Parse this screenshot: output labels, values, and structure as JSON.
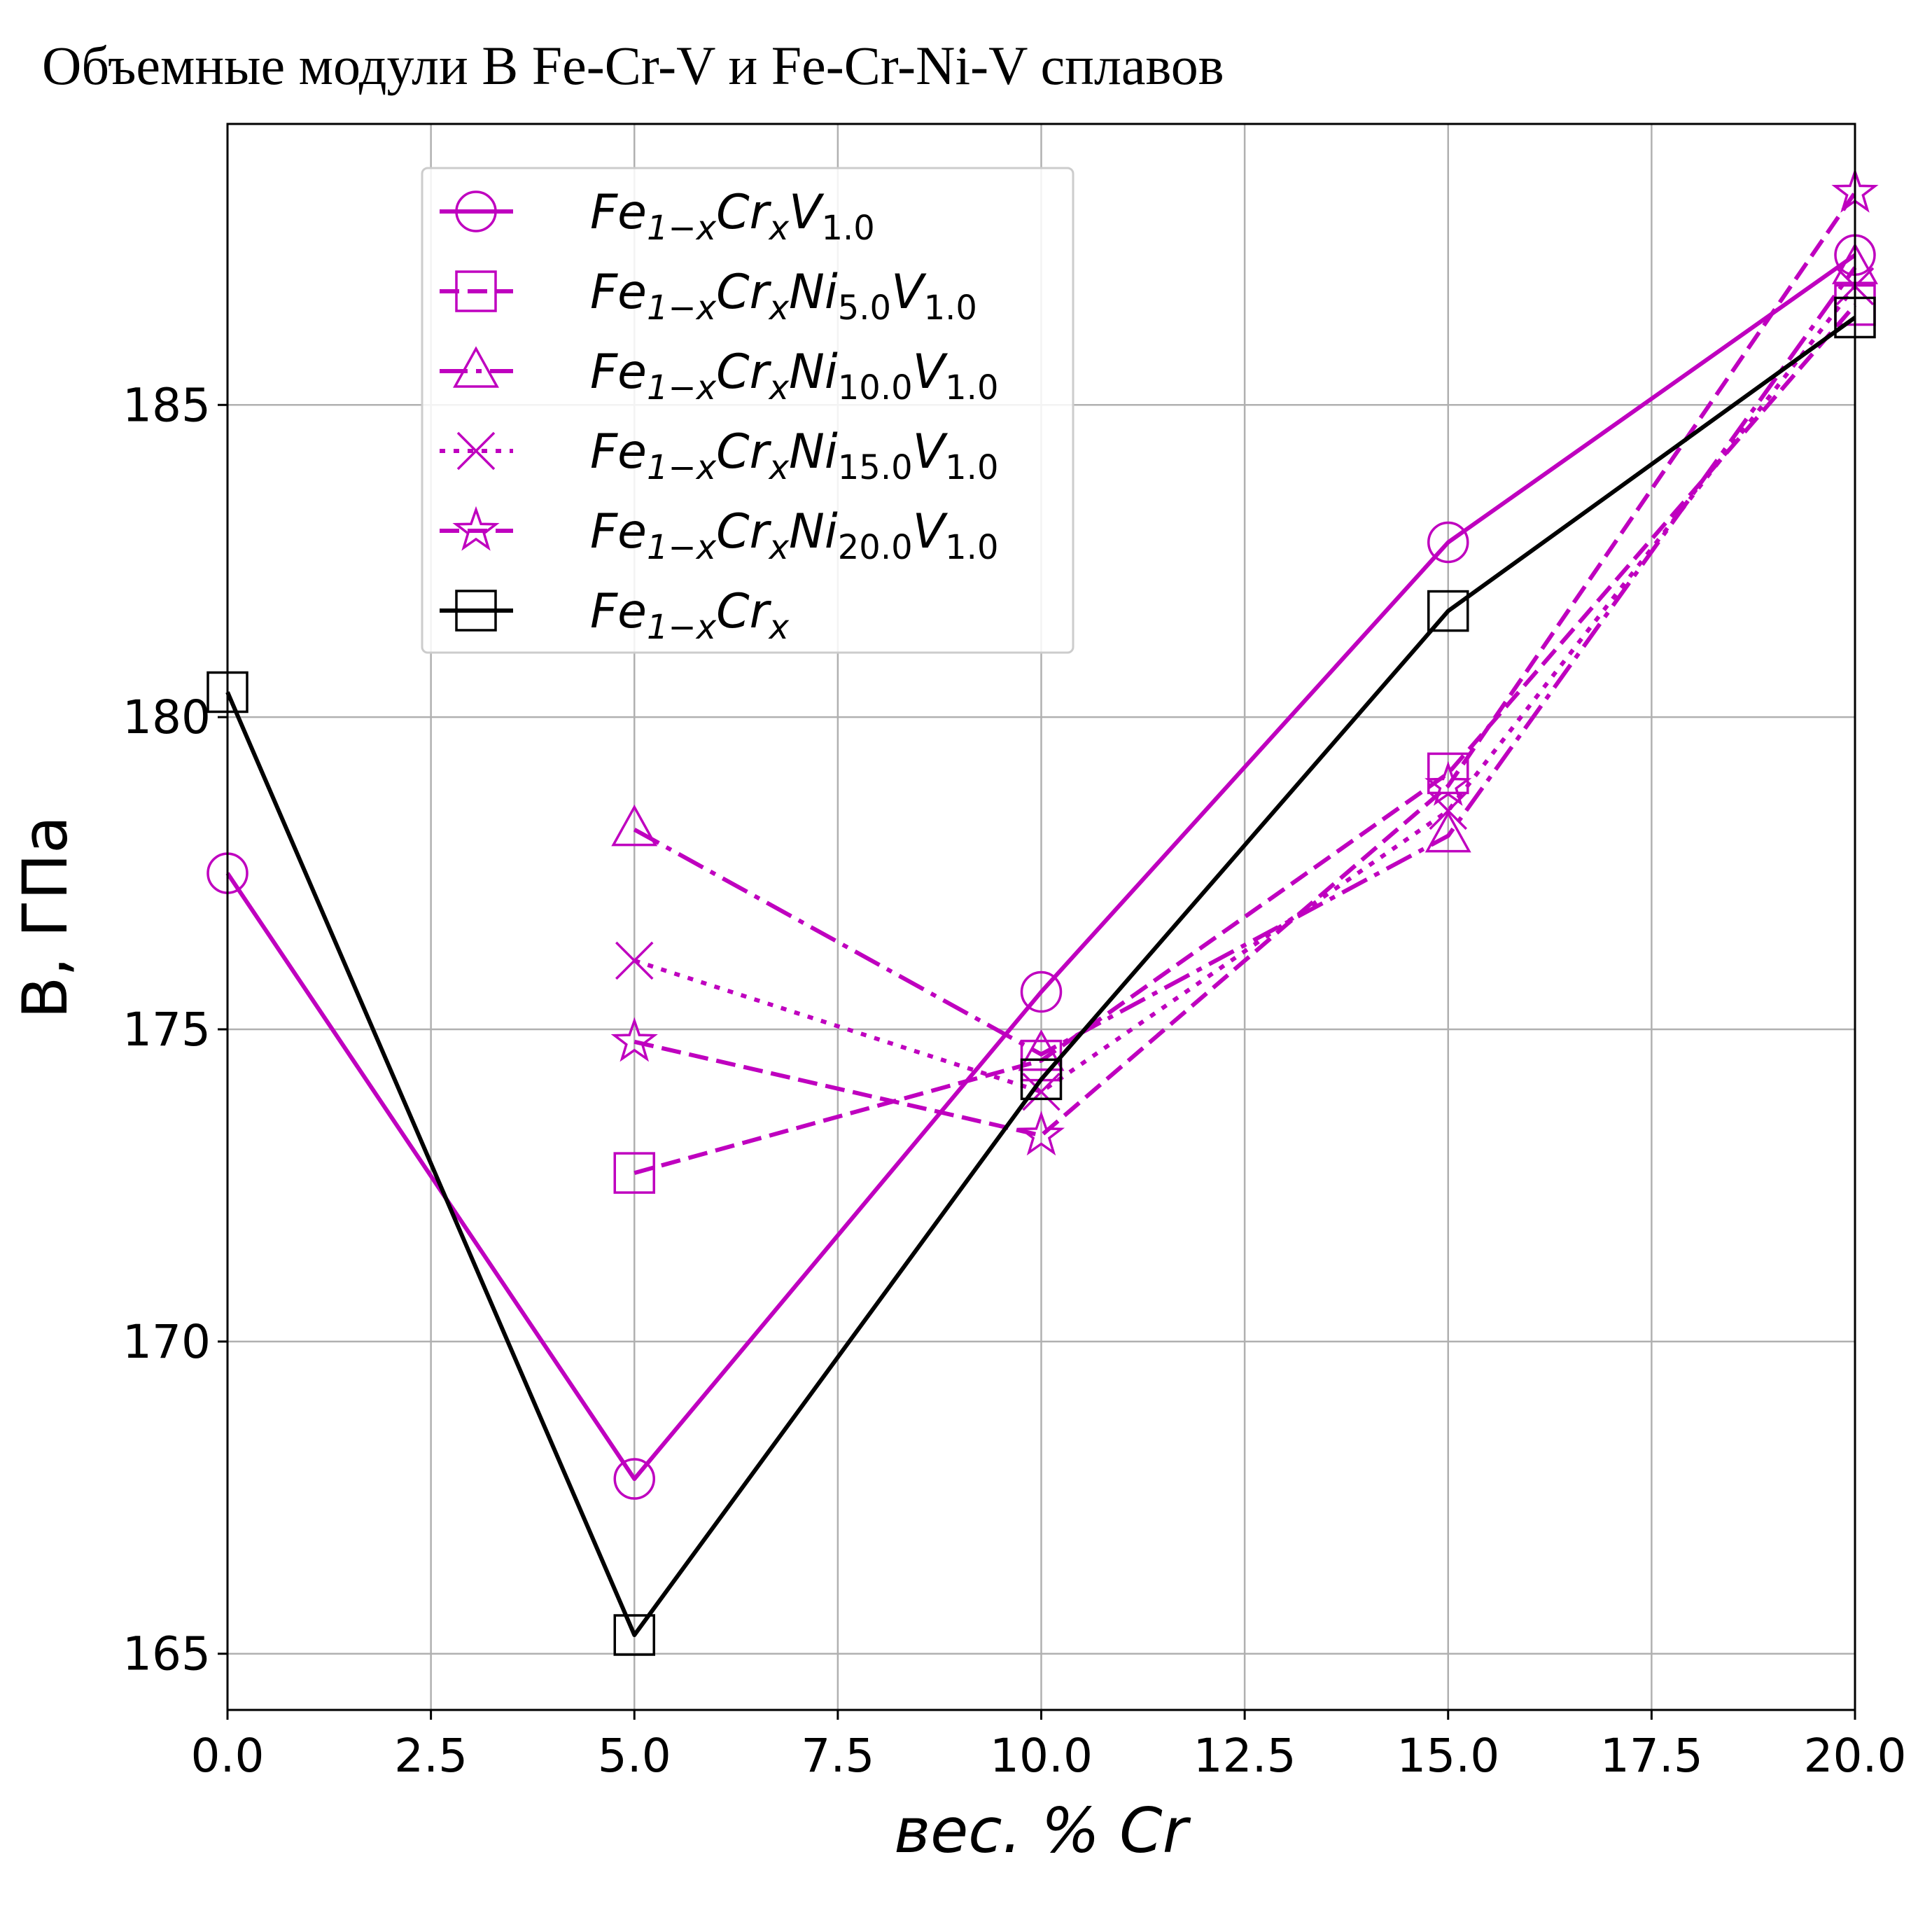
{
  "chart_data": {
    "type": "line",
    "title": "Объемные модули B Fe-Cr-V и Fe-Cr-Ni-V сплавов",
    "xlabel": "вес. % Cr",
    "ylabel": "B, ГПа",
    "xlim": [
      0,
      20
    ],
    "ylim": [
      164.1,
      189.5
    ],
    "xticks": [
      0.0,
      2.5,
      5.0,
      7.5,
      10.0,
      12.5,
      15.0,
      17.5,
      20.0
    ],
    "xtick_labels": [
      "0.0",
      "2.5",
      "5.0",
      "7.5",
      "10.0",
      "12.5",
      "15.0",
      "17.5",
      "20.0"
    ],
    "yticks": [
      165,
      170,
      175,
      180,
      185
    ],
    "ytick_labels": [
      "165",
      "170",
      "175",
      "180",
      "185"
    ],
    "grid": true,
    "legend_position": "upper-left",
    "series": [
      {
        "name": "Fe1−xCrxV1.0",
        "legend": {
          "base": "Fe",
          "parts": [
            [
              "1−x",
              "Cr"
            ],
            [
              "x",
              "V"
            ],
            [
              "1.0",
              ""
            ]
          ]
        },
        "color": "#bf00bf",
        "linestyle": "solid",
        "marker": "circle",
        "x": [
          0,
          5,
          10,
          15,
          20
        ],
        "y": [
          177.5,
          167.8,
          175.6,
          182.8,
          187.4
        ]
      },
      {
        "name": "Fe1−xCrxNi5.0V1.0",
        "legend": {
          "base": "Fe",
          "parts": [
            [
              "1−x",
              "Cr"
            ],
            [
              "x",
              "Ni"
            ],
            [
              "5.0",
              "V"
            ],
            [
              "1.0",
              ""
            ]
          ]
        },
        "color": "#bf00bf",
        "linestyle": "dashed",
        "marker": "square",
        "x": [
          5,
          10,
          15,
          20
        ],
        "y": [
          172.7,
          174.5,
          179.1,
          186.6
        ]
      },
      {
        "name": "Fe1−xCrxNi10.0V1.0",
        "legend": {
          "base": "Fe",
          "parts": [
            [
              "1−x",
              "Cr"
            ],
            [
              "x",
              "Ni"
            ],
            [
              "10.0",
              "V"
            ],
            [
              "1.0",
              ""
            ]
          ]
        },
        "color": "#bf00bf",
        "linestyle": "dashdot",
        "marker": "triangle",
        "x": [
          5,
          10,
          15,
          20
        ],
        "y": [
          178.2,
          174.6,
          178.1,
          187.2
        ]
      },
      {
        "name": "Fe1−xCrxNi15.0V1.0",
        "legend": {
          "base": "Fe",
          "parts": [
            [
              "1−x",
              "Cr"
            ],
            [
              "x",
              "Ni"
            ],
            [
              "15.0",
              "V"
            ],
            [
              "1.0",
              ""
            ]
          ]
        },
        "color": "#bf00bf",
        "linestyle": "dotted",
        "marker": "x",
        "x": [
          5,
          10,
          15,
          20
        ],
        "y": [
          176.1,
          174.0,
          178.5,
          186.9
        ]
      },
      {
        "name": "Fe1−xCrxNi20.0V1.0",
        "legend": {
          "base": "Fe",
          "parts": [
            [
              "1−x",
              "Cr"
            ],
            [
              "x",
              "Ni"
            ],
            [
              "20.0",
              "V"
            ],
            [
              "1.0",
              ""
            ]
          ]
        },
        "color": "#bf00bf",
        "linestyle": "dashed",
        "marker": "star",
        "x": [
          5,
          10,
          15,
          20
        ],
        "y": [
          174.8,
          173.3,
          178.9,
          188.4
        ]
      },
      {
        "name": "Fe1−xCrx",
        "legend": {
          "base": "Fe",
          "parts": [
            [
              "1−x",
              "Cr"
            ],
            [
              "x",
              ""
            ]
          ]
        },
        "color": "#000000",
        "linestyle": "solid",
        "marker": "square",
        "x": [
          0,
          5,
          10,
          15,
          20
        ],
        "y": [
          180.4,
          165.3,
          174.2,
          181.7,
          186.4
        ]
      }
    ]
  }
}
